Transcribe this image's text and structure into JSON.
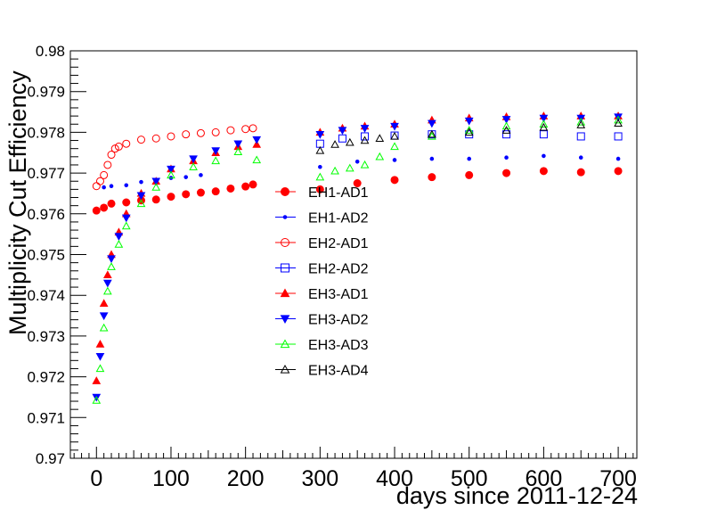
{
  "chart_data": {
    "type": "scatter",
    "title": "",
    "xlabel": "days since 2011-12-24",
    "ylabel": "Multiplicity Cut Efficiency",
    "xlim": [
      -35,
      725
    ],
    "ylim": [
      0.97,
      0.98
    ],
    "x_ticks": [
      "0",
      "100",
      "200",
      "300",
      "400",
      "500",
      "600",
      "700"
    ],
    "y_ticks": [
      "0.97",
      "0.971",
      "0.972",
      "0.973",
      "0.974",
      "0.975",
      "0.976",
      "0.977",
      "0.978",
      "0.979",
      "0.98"
    ],
    "grid": false,
    "legend_position": "center",
    "series": [
      {
        "name": "EH1-AD1",
        "color": "#ff0000",
        "marker": "circle-filled",
        "x": [
          0,
          10,
          20,
          40,
          60,
          80,
          100,
          120,
          140,
          160,
          180,
          200,
          210,
          300,
          350,
          400,
          450,
          500,
          550,
          600,
          650,
          700
        ],
        "y": [
          0.97608,
          0.97615,
          0.97625,
          0.97628,
          0.97633,
          0.97635,
          0.97642,
          0.97648,
          0.97652,
          0.97655,
          0.97662,
          0.97667,
          0.97672,
          0.9766,
          0.97675,
          0.97683,
          0.9769,
          0.97695,
          0.977,
          0.97705,
          0.97702,
          0.97705
        ]
      },
      {
        "name": "EH1-AD2",
        "color": "#0000ff",
        "marker": "dot",
        "x": [
          10,
          20,
          40,
          60,
          80,
          100,
          120,
          140,
          300,
          350,
          400,
          450,
          500,
          550,
          600,
          650,
          700
        ],
        "y": [
          0.97665,
          0.97668,
          0.9767,
          0.97678,
          0.9768,
          0.97688,
          0.9769,
          0.97695,
          0.97715,
          0.97728,
          0.97732,
          0.97735,
          0.97735,
          0.97738,
          0.97742,
          0.97738,
          0.97735
        ]
      },
      {
        "name": "EH2-AD1",
        "color": "#ff0000",
        "marker": "circle-open",
        "x": [
          0,
          5,
          10,
          15,
          20,
          25,
          30,
          40,
          60,
          80,
          100,
          120,
          140,
          160,
          180,
          200,
          210
        ],
        "y": [
          0.97668,
          0.9768,
          0.97695,
          0.9772,
          0.97745,
          0.9776,
          0.97765,
          0.97772,
          0.97782,
          0.97785,
          0.9779,
          0.97795,
          0.97798,
          0.978,
          0.97805,
          0.97808,
          0.9781
        ]
      },
      {
        "name": "EH2-AD2",
        "color": "#0000ff",
        "marker": "square-open",
        "x": [
          300,
          330,
          360,
          400,
          450,
          500,
          550,
          600,
          650,
          700
        ],
        "y": [
          0.97772,
          0.97785,
          0.9779,
          0.97792,
          0.97795,
          0.97795,
          0.97795,
          0.97795,
          0.9779,
          0.9779
        ]
      },
      {
        "name": "EH3-AD1",
        "color": "#ff0000",
        "marker": "triangle-up-filled",
        "x": [
          0,
          5,
          10,
          15,
          20,
          30,
          40,
          60,
          80,
          100,
          130,
          160,
          190,
          215,
          300,
          330,
          360,
          400,
          450,
          500,
          550,
          600,
          650,
          700
        ],
        "y": [
          0.9719,
          0.9728,
          0.9738,
          0.9745,
          0.975,
          0.97555,
          0.976,
          0.9765,
          0.9768,
          0.9771,
          0.9773,
          0.9775,
          0.97765,
          0.9777,
          0.978,
          0.9781,
          0.97815,
          0.9782,
          0.9783,
          0.97835,
          0.97838,
          0.9784,
          0.9784,
          0.9784
        ]
      },
      {
        "name": "EH3-AD2",
        "color": "#0000ff",
        "marker": "triangle-down-filled",
        "x": [
          0,
          5,
          10,
          15,
          20,
          30,
          40,
          60,
          80,
          100,
          130,
          160,
          190,
          215,
          300,
          330,
          360,
          400,
          450,
          500,
          550,
          600,
          650,
          700
        ],
        "y": [
          0.9715,
          0.9725,
          0.9735,
          0.9743,
          0.9749,
          0.97545,
          0.9759,
          0.97645,
          0.9768,
          0.9771,
          0.97735,
          0.97755,
          0.97772,
          0.97782,
          0.97795,
          0.97805,
          0.9781,
          0.97815,
          0.97822,
          0.97828,
          0.97832,
          0.97835,
          0.97835,
          0.97838
        ]
      },
      {
        "name": "EH3-AD3",
        "color": "#00ff00",
        "marker": "triangle-up-open",
        "x": [
          0,
          5,
          10,
          15,
          20,
          30,
          40,
          60,
          80,
          100,
          130,
          160,
          190,
          215,
          300,
          320,
          340,
          360,
          380,
          400,
          450,
          500,
          550,
          600,
          650,
          700
        ],
        "y": [
          0.97142,
          0.9722,
          0.9732,
          0.9741,
          0.9747,
          0.97525,
          0.9757,
          0.97625,
          0.97665,
          0.97695,
          0.97715,
          0.9773,
          0.97752,
          0.97732,
          0.9769,
          0.97705,
          0.97712,
          0.9772,
          0.9774,
          0.97765,
          0.9779,
          0.97805,
          0.97815,
          0.9782,
          0.97825,
          0.9783
        ]
      },
      {
        "name": "EH3-AD4",
        "color": "#000000",
        "marker": "triangle-up-open",
        "x": [
          300,
          320,
          340,
          360,
          380,
          400,
          450,
          500,
          550,
          600,
          650,
          700
        ],
        "y": [
          0.97755,
          0.9777,
          0.97775,
          0.9778,
          0.97785,
          0.9779,
          0.97795,
          0.978,
          0.97805,
          0.97812,
          0.97818,
          0.97822
        ]
      }
    ]
  }
}
